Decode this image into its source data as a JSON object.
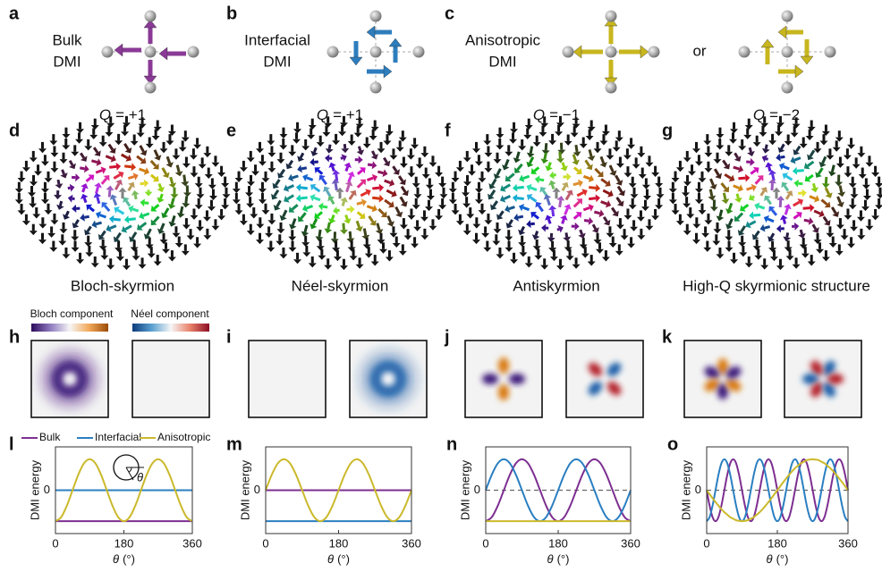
{
  "panels": [
    {
      "letter": "a",
      "label": [
        "Bulk",
        "DMI"
      ]
    },
    {
      "letter": "b",
      "label": [
        "Interfacial",
        "DMI"
      ]
    },
    {
      "letter": "c",
      "label": [
        "Anisotropic",
        "DMI"
      ],
      "alternative": "or"
    }
  ],
  "textures": [
    {
      "letter": "d",
      "charge_symbol": "Q",
      "charge": "= +1",
      "caption": "Bloch-skyrmion"
    },
    {
      "letter": "e",
      "charge_symbol": "Q",
      "charge": "= +1",
      "caption": "Néel-skyrmion"
    },
    {
      "letter": "f",
      "charge_symbol": "Q",
      "charge": "= −1",
      "caption": "Antiskyrmion"
    },
    {
      "letter": "g",
      "charge_symbol": "Q",
      "charge": "= −2",
      "caption": "High-Q skyrmionic structure"
    }
  ],
  "components": {
    "letters": [
      "h",
      "i",
      "j",
      "k"
    ],
    "colorbars": [
      "Bloch component",
      "Néel component"
    ]
  },
  "chart_data": [
    {
      "letter": "l",
      "type": "line",
      "ylabel": "DMI energy",
      "xlabel_symbol": "θ",
      "xlabel_unit": "(°)",
      "inset_label": "θ",
      "x": [
        0,
        15,
        30,
        45,
        60,
        75,
        90,
        105,
        120,
        135,
        150,
        165,
        180,
        195,
        210,
        225,
        240,
        255,
        270,
        285,
        300,
        315,
        330,
        345,
        360
      ],
      "xlim": [
        0,
        360
      ],
      "xticks": [
        0,
        180,
        360
      ],
      "ylim": [
        -1.4,
        1.4
      ],
      "yticks": [
        0
      ],
      "series": [
        {
          "name": "Bulk",
          "color": "#7d2f91",
          "values": [
            -1,
            -1,
            -1,
            -1,
            -1,
            -1,
            -1,
            -1,
            -1,
            -1,
            -1,
            -1,
            -1,
            -1,
            -1,
            -1,
            -1,
            -1,
            -1,
            -1,
            -1,
            -1,
            -1,
            -1,
            -1
          ]
        },
        {
          "name": "Interfacial",
          "color": "#2a7fc1",
          "values": [
            0,
            0,
            0,
            0,
            0,
            0,
            0,
            0,
            0,
            0,
            0,
            0,
            0,
            0,
            0,
            0,
            0,
            0,
            0,
            0,
            0,
            0,
            0,
            0,
            0
          ]
        },
        {
          "name": "Anisotropic",
          "color": "#cbb92c",
          "values": [
            -1,
            -0.87,
            -0.5,
            0,
            0.5,
            0.87,
            1,
            0.87,
            0.5,
            0,
            -0.5,
            -0.87,
            -1,
            -0.87,
            -0.5,
            0,
            0.5,
            0.87,
            1,
            0.87,
            0.5,
            0,
            -0.5,
            -0.87,
            -1
          ]
        }
      ]
    },
    {
      "letter": "m",
      "type": "line",
      "ylabel": "DMI energy",
      "xlabel_symbol": "θ",
      "xlabel_unit": "(°)",
      "x": [
        0,
        15,
        30,
        45,
        60,
        75,
        90,
        105,
        120,
        135,
        150,
        165,
        180,
        195,
        210,
        225,
        240,
        255,
        270,
        285,
        300,
        315,
        330,
        345,
        360
      ],
      "xlim": [
        0,
        360
      ],
      "xticks": [
        0,
        180,
        360
      ],
      "ylim": [
        -1.4,
        1.4
      ],
      "yticks": [
        0
      ],
      "series": [
        {
          "color": "#7d2f91",
          "values": [
            0,
            0,
            0,
            0,
            0,
            0,
            0,
            0,
            0,
            0,
            0,
            0,
            0,
            0,
            0,
            0,
            0,
            0,
            0,
            0,
            0,
            0,
            0,
            0,
            0
          ]
        },
        {
          "color": "#2a7fc1",
          "values": [
            -1,
            -1,
            -1,
            -1,
            -1,
            -1,
            -1,
            -1,
            -1,
            -1,
            -1,
            -1,
            -1,
            -1,
            -1,
            -1,
            -1,
            -1,
            -1,
            -1,
            -1,
            -1,
            -1,
            -1,
            -1
          ]
        },
        {
          "color": "#cbb92c",
          "values": [
            0,
            0.5,
            0.87,
            1,
            0.87,
            0.5,
            0,
            -0.5,
            -0.87,
            -1,
            -0.87,
            -0.5,
            0,
            0.5,
            0.87,
            1,
            0.87,
            0.5,
            0,
            -0.5,
            -0.87,
            -1,
            -0.87,
            -0.5,
            0
          ]
        }
      ]
    },
    {
      "letter": "n",
      "type": "line",
      "ylabel": "DMI energy",
      "xlabel_symbol": "θ",
      "xlabel_unit": "(°)",
      "x": [
        0,
        15,
        30,
        45,
        60,
        75,
        90,
        105,
        120,
        135,
        150,
        165,
        180,
        195,
        210,
        225,
        240,
        255,
        270,
        285,
        300,
        315,
        330,
        345,
        360
      ],
      "xlim": [
        0,
        360
      ],
      "xticks": [
        0,
        180,
        360
      ],
      "ylim": [
        -1.4,
        1.4
      ],
      "yticks": [
        0
      ],
      "series": [
        {
          "color": "#7d2f91",
          "values": [
            -1,
            -0.87,
            -0.5,
            0,
            0.5,
            0.87,
            1,
            0.87,
            0.5,
            0,
            -0.5,
            -0.87,
            -1,
            -0.87,
            -0.5,
            0,
            0.5,
            0.87,
            1,
            0.87,
            0.5,
            0,
            -0.5,
            -0.87,
            -1
          ]
        },
        {
          "color": "#2a7fc1",
          "values": [
            0,
            0.5,
            0.87,
            1,
            0.87,
            0.5,
            0,
            -0.5,
            -0.87,
            -1,
            -0.87,
            -0.5,
            0,
            0.5,
            0.87,
            1,
            0.87,
            0.5,
            0,
            -0.5,
            -0.87,
            -1,
            -0.87,
            -0.5,
            0
          ]
        },
        {
          "color": "#cbb92c",
          "values": [
            -1,
            -1,
            -1,
            -1,
            -1,
            -1,
            -1,
            -1,
            -1,
            -1,
            -1,
            -1,
            -1,
            -1,
            -1,
            -1,
            -1,
            -1,
            -1,
            -1,
            -1,
            -1,
            -1,
            -1,
            -1
          ]
        }
      ]
    },
    {
      "letter": "o",
      "type": "line",
      "ylabel": "DMI energy",
      "xlabel_symbol": "θ",
      "xlabel_unit": "(°)",
      "x": [
        0,
        7.5,
        15,
        22.5,
        30,
        37.5,
        45,
        52.5,
        60,
        67.5,
        75,
        82.5,
        90,
        97.5,
        105,
        112.5,
        120,
        127.5,
        135,
        142.5,
        150,
        157.5,
        165,
        172.5,
        180,
        187.5,
        195,
        202.5,
        210,
        217.5,
        225,
        232.5,
        240,
        247.5,
        255,
        262.5,
        270,
        277.5,
        285,
        292.5,
        300,
        307.5,
        315,
        322.5,
        330,
        337.5,
        345,
        352.5,
        360
      ],
      "xlim": [
        0,
        360
      ],
      "xticks": [
        0,
        180,
        360
      ],
      "ylim": [
        -1.4,
        1.4
      ],
      "yticks": [
        0
      ],
      "series": [
        {
          "color": "#7d2f91",
          "values": [
            0,
            -0.5,
            -0.87,
            -1,
            -0.87,
            -0.5,
            0,
            0.5,
            0.87,
            1,
            0.87,
            0.5,
            0,
            -0.5,
            -0.87,
            -1,
            -0.87,
            -0.5,
            0,
            0.5,
            0.87,
            1,
            0.87,
            0.5,
            0,
            -0.5,
            -0.87,
            -1,
            -0.87,
            -0.5,
            0,
            0.5,
            0.87,
            1,
            0.87,
            0.5,
            0,
            -0.5,
            -0.87,
            -1,
            -0.87,
            -0.5,
            0,
            0.5,
            0.87,
            1,
            0.87,
            0.5,
            0
          ]
        },
        {
          "color": "#2a7fc1",
          "values": [
            -1,
            -0.87,
            -0.5,
            0,
            0.5,
            0.87,
            1,
            0.87,
            0.5,
            0,
            -0.5,
            -0.87,
            -1,
            -0.87,
            -0.5,
            0,
            0.5,
            0.87,
            1,
            0.87,
            0.5,
            0,
            -0.5,
            -0.87,
            -1,
            -0.87,
            -0.5,
            0,
            0.5,
            0.87,
            1,
            0.87,
            0.5,
            0,
            -0.5,
            -0.87,
            -1,
            -0.87,
            -0.5,
            0,
            0.5,
            0.87,
            1,
            0.87,
            0.5,
            0,
            -0.5,
            -0.87,
            -1
          ]
        },
        {
          "color": "#cbb92c",
          "values": [
            0,
            -0.13,
            -0.26,
            -0.38,
            -0.5,
            -0.61,
            -0.71,
            -0.79,
            -0.87,
            -0.92,
            -0.97,
            -0.99,
            -1,
            -0.99,
            -0.97,
            -0.92,
            -0.87,
            -0.79,
            -0.71,
            -0.61,
            -0.5,
            -0.38,
            -0.26,
            -0.13,
            0,
            0.13,
            0.26,
            0.38,
            0.5,
            0.61,
            0.71,
            0.79,
            0.87,
            0.92,
            0.97,
            0.99,
            1,
            0.99,
            0.97,
            0.92,
            0.87,
            0.79,
            0.71,
            0.61,
            0.5,
            0.38,
            0.26,
            0.13,
            0
          ]
        }
      ]
    }
  ]
}
